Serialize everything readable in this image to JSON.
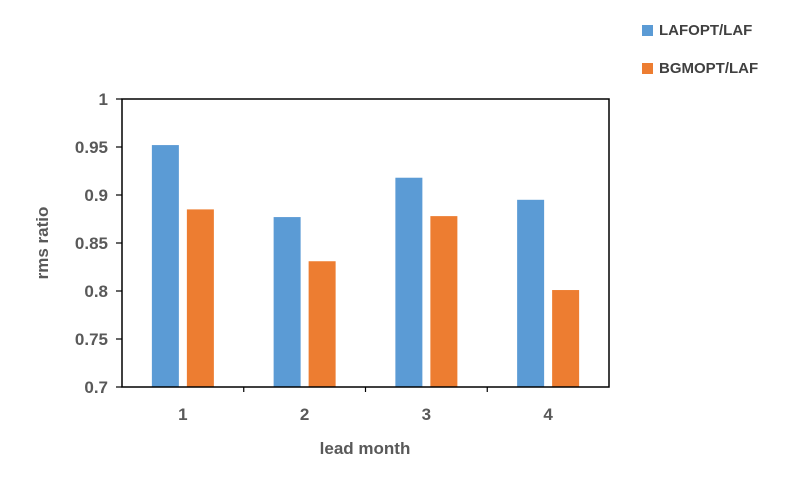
{
  "chart_data": {
    "type": "bar",
    "xlabel": "lead month",
    "ylabel": "rms ratio",
    "categories": [
      "1",
      "2",
      "3",
      "4"
    ],
    "ylim": [
      0.7,
      1
    ],
    "yticks": [
      0.7,
      0.75,
      0.8,
      0.85,
      0.9,
      0.95,
      1
    ],
    "ytick_labels": [
      "0.7",
      "0.75",
      "0.8",
      "0.85",
      "0.9",
      "0.95",
      "1"
    ],
    "grid": false,
    "legend_position": "top-right",
    "series": [
      {
        "name": "LAFOPT/LAF",
        "color": "#5B9BD5",
        "values": [
          0.952,
          0.877,
          0.918,
          0.895
        ]
      },
      {
        "name": "BGMOPT/LAF",
        "color": "#ED7D31",
        "values": [
          0.885,
          0.831,
          0.878,
          0.801
        ]
      }
    ]
  }
}
